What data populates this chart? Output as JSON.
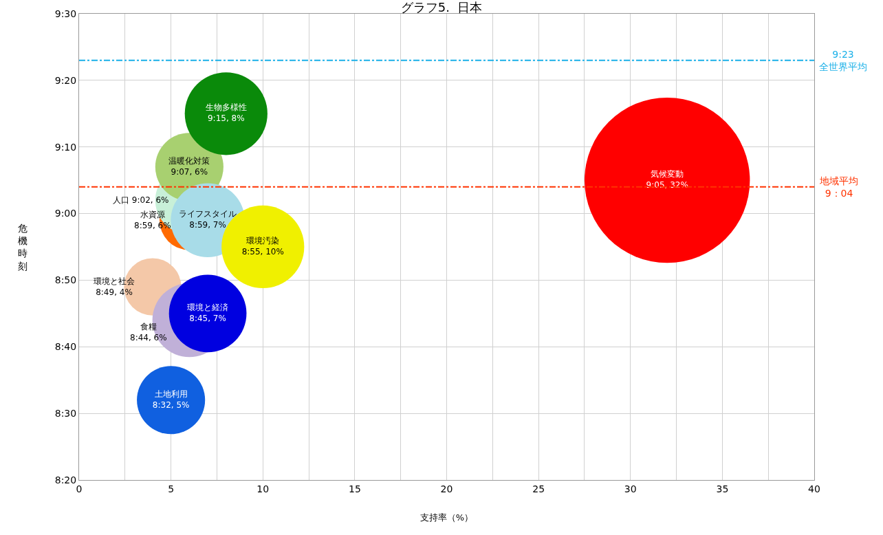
{
  "chart_data": {
    "type": "bubble",
    "title": "グラフ5.  日本",
    "xlabel": "支持率（%）",
    "ylabel": "危機時刻",
    "xlim": [
      0,
      40
    ],
    "xticks": [
      0,
      {
        "value": 2.5,
        "label": null
      },
      5,
      {
        "value": 7.5,
        "label": null
      },
      10,
      {
        "value": 12.5,
        "label": null
      },
      15,
      {
        "value": 17.5,
        "label": null
      },
      20,
      {
        "value": 22.5,
        "label": null
      },
      25,
      {
        "value": 27.5,
        "label": null
      },
      30,
      {
        "value": 32.5,
        "label": null
      },
      35,
      {
        "value": 37.5,
        "label": null
      },
      40
    ],
    "ylim": [
      8.3333,
      9.5
    ],
    "yticks": [
      {
        "value": 8.3333,
        "label": "8:20"
      },
      {
        "value": 8.5,
        "label": "8:30"
      },
      {
        "value": 8.6667,
        "label": "8:40"
      },
      {
        "value": 8.8333,
        "label": "8:50"
      },
      {
        "value": 9.0,
        "label": "9:00"
      },
      {
        "value": 9.1667,
        "label": "9:10"
      },
      {
        "value": 9.3333,
        "label": "9:20"
      },
      {
        "value": 9.5,
        "label": "9:30"
      }
    ],
    "grid": true,
    "legend": false,
    "series": [
      {
        "name": "水資源",
        "color": "#ff6a00",
        "x": [
          6
        ],
        "values": [
          8.9833
        ],
        "sizes": [
          0.13
        ],
        "value_labels": [
          "8:59, 6%"
        ]
      },
      {
        "name": "人口",
        "color": "#c8f0d8",
        "x": [
          6
        ],
        "values": [
          9.0333
        ],
        "sizes": [
          0.17
        ],
        "value_labels": [
          "9:02, 6%"
        ]
      },
      {
        "name": "温暖化対策",
        "color": "#a8d070",
        "x": [
          6
        ],
        "values": [
          9.1167
        ],
        "sizes": [
          0.17
        ],
        "value_labels": [
          "9:07, 6%"
        ]
      },
      {
        "name": "ライフスタイル",
        "color": "#a8dce8",
        "x": [
          7
        ],
        "values": [
          8.9833
        ],
        "sizes": [
          0.2
        ],
        "value_labels": [
          "8:59, 7%"
        ]
      },
      {
        "name": "環境汚染",
        "color": "#f0f000",
        "x": [
          10
        ],
        "values": [
          8.9167
        ],
        "sizes": [
          0.25
        ],
        "value_labels": [
          "8:55, 10%"
        ]
      },
      {
        "name": "生物多様性",
        "color": "#0a8a0a",
        "x": [
          8
        ],
        "values": [
          9.25
        ],
        "sizes": [
          0.25
        ],
        "value_labels": [
          "9:15, 8%"
        ]
      },
      {
        "name": "環境と社会",
        "color": "#f4c8a8",
        "x": [
          4
        ],
        "values": [
          8.8167
        ],
        "sizes": [
          0.12
        ],
        "value_labels": [
          "8:49, 4%"
        ]
      },
      {
        "name": "食糧",
        "color": "#c0b0d8",
        "x": [
          6
        ],
        "values": [
          8.7333
        ],
        "sizes": [
          0.2
        ],
        "value_labels": [
          "8:44, 6%"
        ]
      },
      {
        "name": "環境と経済",
        "color": "#0000e0",
        "x": [
          7
        ],
        "values": [
          8.75
        ],
        "sizes": [
          0.22
        ],
        "value_labels": [
          "8:45, 7%"
        ]
      },
      {
        "name": "土地利用",
        "color": "#1060e0",
        "x": [
          5
        ],
        "values": [
          8.5333
        ],
        "sizes": [
          0.17
        ],
        "value_labels": [
          "8:32, 5%"
        ]
      },
      {
        "name": "気候変動",
        "color": "#ff0000",
        "x": [
          32
        ],
        "values": [
          9.0833
        ],
        "sizes": [
          1
        ],
        "value_labels": [
          "9:05, 32%"
        ]
      }
    ],
    "ref_lines": [
      {
        "axis": "y",
        "value": 9.3833,
        "label": "9:23\n全世界平均",
        "color": "#1ab0e8",
        "line_style": "dashdot"
      },
      {
        "axis": "y",
        "value": 9.0667,
        "label": "地域平均\n9：04",
        "color": "#ff3300",
        "line_style": "dashdot"
      }
    ]
  }
}
